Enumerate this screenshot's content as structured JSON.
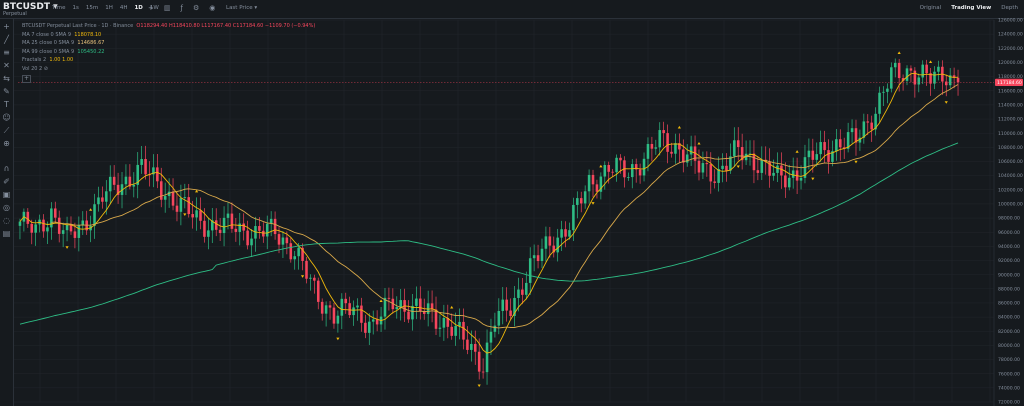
{
  "header": {
    "symbol": "BTCUSDT",
    "symbol_sub": "Perpetual",
    "intervals": [
      "Time",
      "1s",
      "15m",
      "1H",
      "4H",
      "1D",
      "1W"
    ],
    "active_interval": "1D",
    "price_type": "Last Price",
    "views": [
      "Original",
      "Trading View",
      "Depth"
    ],
    "active_view": "Trading View"
  },
  "legend": {
    "title": "BTCUSDT Perpetual Last Price · 1D · Binance",
    "ohlc": "O118294.40  H118410.80  L117167.40  C117184.60  −1109.70 (−0.94%)",
    "ma7_label": "MA 7 close 0 SMA 9",
    "ma7_value": "118078.10",
    "ma25_label": "MA 25 close 0 SMA 9",
    "ma25_value": "114686.67",
    "ma99_label": "MA 99 close 0 SMA 9",
    "ma99_value": "105450.22",
    "fractals_label": "Fractals 2",
    "fractals_values": "1.00  1.00",
    "vol_label": "Vol 20 2"
  },
  "colors": {
    "up": "#2ebd85",
    "down": "#f6465d",
    "ma7": "#f0b90b",
    "ma25": "#d8a84a",
    "ma99": "#2ebd85",
    "fractal": "#f0b90b",
    "background": "#161a1e",
    "grid": "#22262c"
  },
  "chart_data": {
    "type": "candlestick",
    "ylim": [
      72000,
      126000
    ],
    "y_ticks": [
      126000,
      124000,
      122000,
      120000,
      118000,
      116000,
      114000,
      112000,
      110000,
      108000,
      106000,
      104000,
      102000,
      100000,
      98000,
      96000,
      94000,
      92000,
      90000,
      88000,
      86000,
      84000,
      82000,
      80000,
      78000,
      76000,
      74000,
      72000
    ],
    "last_price": "117184.60",
    "last_price_value": 117184.6,
    "anchors": [
      [
        0,
        97500
      ],
      [
        4,
        96000
      ],
      [
        8,
        99000
      ],
      [
        12,
        95000
      ],
      [
        16,
        97000
      ],
      [
        21,
        101000
      ],
      [
        26,
        103000
      ],
      [
        31,
        105000
      ],
      [
        35,
        103000
      ],
      [
        40,
        100000
      ],
      [
        45,
        98000
      ],
      [
        50,
        96500
      ],
      [
        55,
        97000
      ],
      [
        60,
        95500
      ],
      [
        65,
        96500
      ],
      [
        70,
        93000
      ],
      [
        75,
        88000
      ],
      [
        80,
        84000
      ],
      [
        85,
        85500
      ],
      [
        90,
        82500
      ],
      [
        95,
        86500
      ],
      [
        100,
        85000
      ],
      [
        105,
        84500
      ],
      [
        110,
        82500
      ],
      [
        115,
        79500
      ],
      [
        118,
        77500
      ],
      [
        121,
        83500
      ],
      [
        125,
        85500
      ],
      [
        130,
        91000
      ],
      [
        135,
        94500
      ],
      [
        140,
        97000
      ],
      [
        145,
        103000
      ],
      [
        150,
        105000
      ],
      [
        155,
        104500
      ],
      [
        160,
        107000
      ],
      [
        163,
        109000
      ],
      [
        168,
        108000
      ],
      [
        173,
        105000
      ],
      [
        178,
        104500
      ],
      [
        183,
        107500
      ],
      [
        188,
        106000
      ],
      [
        193,
        103500
      ],
      [
        198,
        104500
      ],
      [
        203,
        107000
      ],
      [
        208,
        108500
      ],
      [
        213,
        109000
      ],
      [
        218,
        113500
      ],
      [
        222,
        118000
      ],
      [
        227,
        119000
      ],
      [
        232,
        117500
      ],
      [
        236,
        118500
      ],
      [
        239,
        117200
      ]
    ],
    "fractals_up": [
      18,
      45,
      92,
      110,
      148,
      168,
      173,
      198,
      224,
      232
    ],
    "fractals_down": [
      12,
      42,
      72,
      81,
      117,
      146,
      183,
      202,
      213,
      236
    ]
  }
}
